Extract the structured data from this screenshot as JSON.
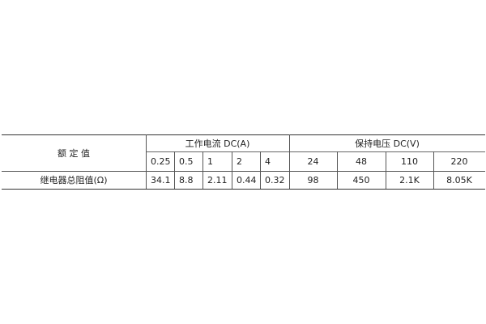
{
  "table": {
    "row_header_top": "额 定 值",
    "group_current": "工作电流 DC(A)",
    "group_voltage": "保持电压 DC(V)",
    "current_values": [
      "0.25",
      "0.5",
      "1",
      "2",
      "4"
    ],
    "voltage_values": [
      "24",
      "48",
      "110",
      "220"
    ],
    "row_label": "继电器总阻值(Ω)",
    "current_resistances": [
      "34.1",
      "8.8",
      "2.11",
      "0.44",
      "0.32"
    ],
    "voltage_resistances": [
      "98",
      "450",
      "2.1K",
      "8.05K"
    ]
  }
}
